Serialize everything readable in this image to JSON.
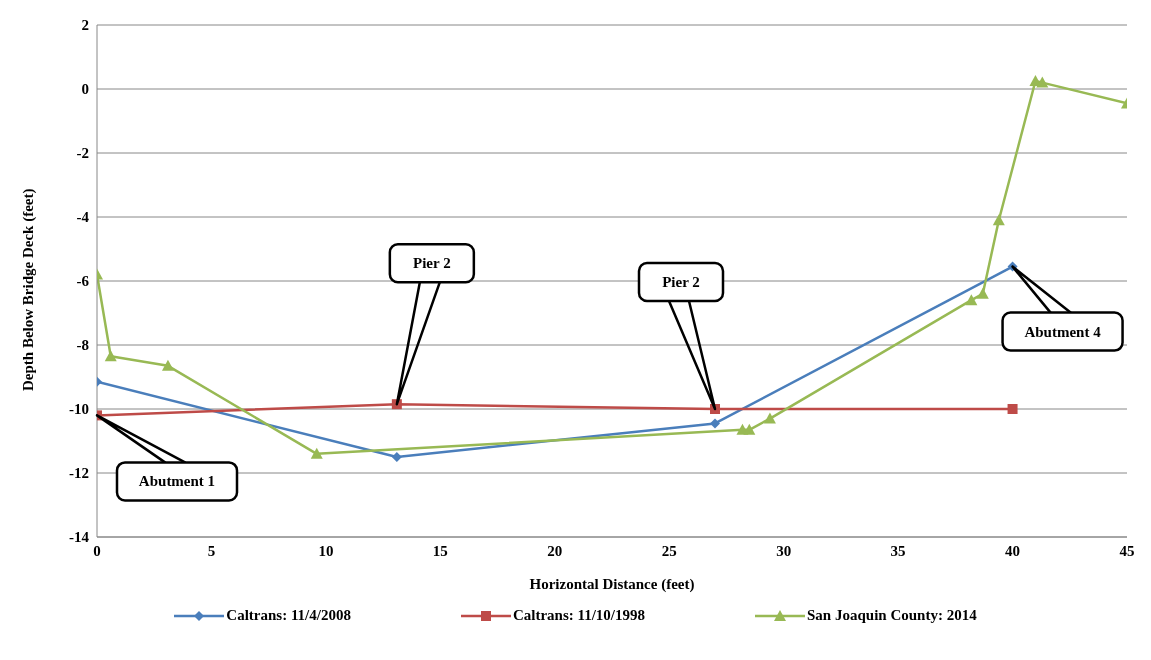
{
  "chart_data": {
    "type": "line",
    "xlabel": "Horizontal Distance (feet)",
    "ylabel": "Depth Below Bridge Deck (feet)",
    "xlim": [
      0,
      45
    ],
    "xticks": [
      0,
      5,
      10,
      15,
      20,
      25,
      30,
      35,
      40,
      45
    ],
    "ylim": [
      -14,
      2
    ],
    "yticks": [
      -14,
      -12,
      -10,
      -8,
      -6,
      -4,
      -2,
      0,
      2
    ],
    "grid": "y",
    "legend": "bottom",
    "line_style": "solid",
    "series": [
      {
        "name": "Caltrans: 11/4/2008",
        "color": "#4a7ebb",
        "marker": "diamond",
        "x": [
          0,
          13.1,
          27,
          40
        ],
        "values": [
          -9.15,
          -11.5,
          -10.45,
          -5.55
        ]
      },
      {
        "name": "Caltrans: 11/10/1998",
        "color": "#be4b48",
        "marker": "square",
        "x": [
          0,
          13.1,
          27,
          40
        ],
        "values": [
          -10.2,
          -9.85,
          -10,
          -10
        ]
      },
      {
        "name": "San Joaquin County: 2014",
        "color": "#98b954",
        "marker": "triangle",
        "x": [
          0,
          0.6,
          3.1,
          9.6,
          28.2,
          28.5,
          29.4,
          38.2,
          38.7,
          39.4,
          41,
          41.3,
          45
        ],
        "values": [
          -5.8,
          -8.35,
          -8.65,
          -11.4,
          -10.65,
          -10.65,
          -10.3,
          -6.6,
          -6.4,
          -4.1,
          0.25,
          0.2,
          -0.45
        ]
      }
    ],
    "annotations": [
      {
        "text": "Abutment 1",
        "x": 0,
        "y": -10.2
      },
      {
        "text": "Pier 2",
        "x": 13.1,
        "y": -9.85
      },
      {
        "text": "Pier 2",
        "x": 27,
        "y": -10
      },
      {
        "text": "Abutment 4",
        "x": 40,
        "y": -5.55
      }
    ]
  }
}
